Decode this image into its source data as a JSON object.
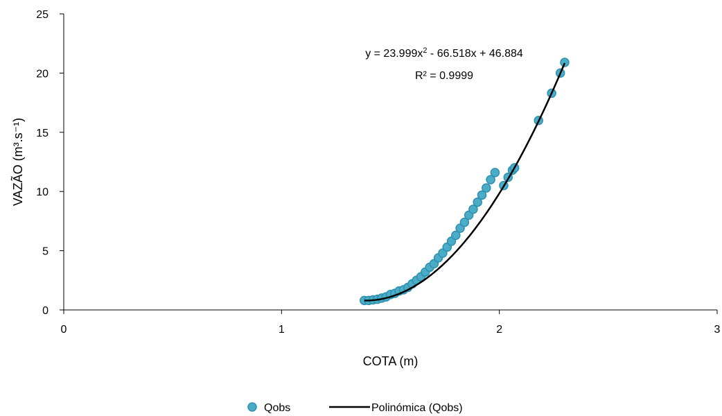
{
  "chart_data": {
    "type": "scatter",
    "xlabel": "COTA (m)",
    "ylabel": "VAZÃO (m³.s⁻¹)",
    "xlim": [
      0,
      3
    ],
    "ylim": [
      0,
      25
    ],
    "x_ticks": [
      "0",
      "1",
      "2",
      "3"
    ],
    "y_ticks": [
      "0",
      "5",
      "10",
      "15",
      "20",
      "25"
    ],
    "grid": false,
    "legend_position": "bottom",
    "series": [
      {
        "name": "Qobs",
        "kind": "points",
        "color": "#4BACC6",
        "x": [
          1.38,
          1.4,
          1.42,
          1.44,
          1.46,
          1.48,
          1.5,
          1.52,
          1.54,
          1.56,
          1.58,
          1.6,
          1.62,
          1.64,
          1.66,
          1.68,
          1.7,
          1.72,
          1.74,
          1.76,
          1.78,
          1.8,
          1.82,
          1.84,
          1.86,
          1.88,
          1.9,
          1.92,
          1.94,
          1.96,
          1.98,
          2.02,
          2.04,
          2.06,
          2.07,
          2.18,
          2.24,
          2.28,
          2.3
        ],
        "y": [
          0.8,
          0.8,
          0.85,
          0.9,
          1.0,
          1.1,
          1.3,
          1.4,
          1.6,
          1.7,
          1.9,
          2.2,
          2.5,
          2.8,
          3.2,
          3.6,
          3.9,
          4.4,
          4.8,
          5.3,
          5.8,
          6.3,
          6.9,
          7.4,
          8.0,
          8.5,
          9.1,
          9.7,
          10.3,
          11.0,
          11.6,
          10.5,
          11.2,
          11.8,
          12.0,
          16.0,
          18.3,
          20.0,
          20.9
        ]
      },
      {
        "name": "Polinómica (Qobs)",
        "kind": "trendline",
        "color": "#000000",
        "coefficients": [
          23.999,
          -66.518,
          46.884
        ],
        "x_range": [
          1.38,
          2.3
        ]
      }
    ],
    "annotations": {
      "equation_prefix": "y = 23.999x",
      "equation_sup": "2",
      "equation_suffix": " - 66.518x + 46.884",
      "r2": "R² = 0.9999"
    }
  }
}
